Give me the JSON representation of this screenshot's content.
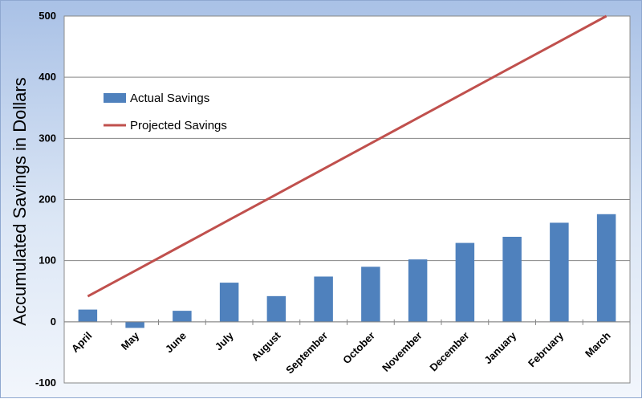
{
  "chart_data": {
    "type": "bar",
    "categories": [
      "April",
      "May",
      "June",
      "July",
      "August",
      "September",
      "October",
      "November",
      "December",
      "January",
      "February",
      "March"
    ],
    "series": [
      {
        "name": "Actual Savings",
        "type": "bar",
        "color": "#4f81bd",
        "values": [
          20,
          -10,
          18,
          64,
          42,
          74,
          90,
          102,
          129,
          139,
          162,
          176
        ]
      },
      {
        "name": "Projected Savings",
        "type": "line",
        "color": "#c0504d",
        "values": [
          41.7,
          83.3,
          125,
          166.7,
          208.3,
          250,
          291.7,
          333.3,
          375,
          416.7,
          458.3,
          500
        ]
      }
    ],
    "title": "",
    "xlabel": "",
    "ylabel": "Accumulated Savings in Dollars",
    "ylim": [
      -100,
      500
    ],
    "yticks": [
      "-100",
      "0",
      "100",
      "200",
      "300",
      "400",
      "500"
    ],
    "grid": true,
    "legend_position": "top-left",
    "plot_background": "#ffffff"
  }
}
